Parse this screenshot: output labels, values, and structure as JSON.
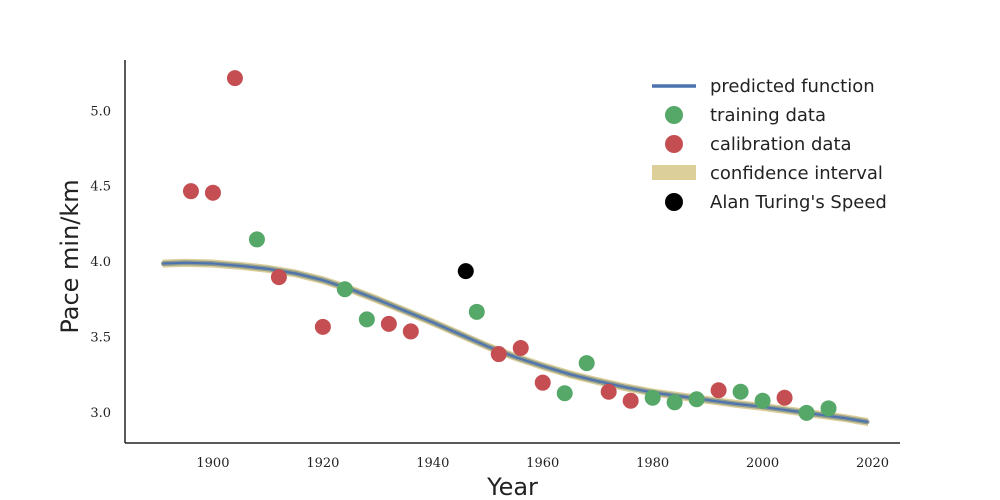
{
  "chart_data": {
    "type": "scatter",
    "title": "",
    "xlabel": "Year",
    "ylabel": "Pace min/km",
    "xlim": [
      1884,
      2025
    ],
    "ylim": [
      2.8,
      5.34
    ],
    "xticks": [
      "1900",
      "1920",
      "1940",
      "1960",
      "1980",
      "2000",
      "2020"
    ],
    "yticks": [
      "3.0",
      "3.5",
      "4.0",
      "4.5",
      "5.0"
    ],
    "grid": false,
    "legend_position": "top-right",
    "colors": {
      "predicted": "#4c72b0",
      "training": "#55a868",
      "calibration": "#c44e52",
      "confidence": "#dccf99",
      "alan": "#000000",
      "axis": "#222222"
    },
    "legend": [
      {
        "label": "predicted function",
        "kind": "line",
        "color_key": "predicted"
      },
      {
        "label": "training data",
        "kind": "marker",
        "color_key": "training"
      },
      {
        "label": "calibration data",
        "kind": "marker",
        "color_key": "calibration"
      },
      {
        "label": "confidence interval",
        "kind": "patch",
        "color_key": "confidence"
      },
      {
        "label": "Alan Turing's Speed",
        "kind": "marker",
        "color_key": "alan"
      }
    ],
    "series": [
      {
        "name": "predicted function",
        "style": "line",
        "color_key": "predicted",
        "x": [
          1891,
          1895,
          1900,
          1905,
          1910,
          1915,
          1920,
          1925,
          1930,
          1935,
          1940,
          1945,
          1950,
          1955,
          1960,
          1965,
          1970,
          1975,
          1980,
          1985,
          1990,
          1995,
          2000,
          2005,
          2010,
          2015,
          2019
        ],
        "y": [
          3.99,
          3.995,
          3.99,
          3.975,
          3.955,
          3.925,
          3.88,
          3.82,
          3.75,
          3.675,
          3.6,
          3.52,
          3.44,
          3.37,
          3.31,
          3.255,
          3.21,
          3.17,
          3.135,
          3.11,
          3.085,
          3.06,
          3.04,
          3.015,
          2.99,
          2.965,
          2.94
        ]
      },
      {
        "name": "confidence interval",
        "style": "band",
        "color_key": "confidence",
        "x": [
          1891,
          1895,
          1900,
          1905,
          1910,
          1915,
          1920,
          1925,
          1930,
          1935,
          1940,
          1945,
          1950,
          1955,
          1960,
          1965,
          1970,
          1975,
          1980,
          1985,
          1990,
          1995,
          2000,
          2005,
          2010,
          2015,
          2019
        ],
        "y_low": [
          3.97,
          3.975,
          3.97,
          3.955,
          3.935,
          3.905,
          3.86,
          3.8,
          3.73,
          3.655,
          3.58,
          3.5,
          3.42,
          3.35,
          3.29,
          3.235,
          3.19,
          3.15,
          3.115,
          3.09,
          3.065,
          3.04,
          3.02,
          2.995,
          2.97,
          2.945,
          2.92
        ],
        "y_high": [
          4.01,
          4.015,
          4.01,
          3.995,
          3.975,
          3.945,
          3.9,
          3.84,
          3.77,
          3.695,
          3.62,
          3.54,
          3.46,
          3.39,
          3.33,
          3.275,
          3.23,
          3.19,
          3.155,
          3.13,
          3.105,
          3.08,
          3.06,
          3.035,
          3.01,
          2.985,
          2.96
        ]
      },
      {
        "name": "training data",
        "style": "scatter",
        "color_key": "training",
        "x": [
          1908,
          1924,
          1928,
          1948,
          1964,
          1968,
          1980,
          1984,
          1988,
          1996,
          2000,
          2008,
          2012
        ],
        "y": [
          4.15,
          3.82,
          3.62,
          3.67,
          3.13,
          3.33,
          3.1,
          3.07,
          3.09,
          3.14,
          3.08,
          3.0,
          3.03
        ]
      },
      {
        "name": "calibration data",
        "style": "scatter",
        "color_key": "calibration",
        "x": [
          1896,
          1900,
          1904,
          1912,
          1920,
          1932,
          1936,
          1952,
          1956,
          1960,
          1972,
          1976,
          1992,
          2004
        ],
        "y": [
          4.47,
          4.46,
          5.22,
          3.9,
          3.57,
          3.59,
          3.54,
          3.39,
          3.43,
          3.2,
          3.14,
          3.08,
          3.15,
          3.1
        ]
      },
      {
        "name": "Alan Turing's Speed",
        "style": "scatter",
        "color_key": "alan",
        "x": [
          1946
        ],
        "y": [
          3.94
        ]
      }
    ]
  }
}
